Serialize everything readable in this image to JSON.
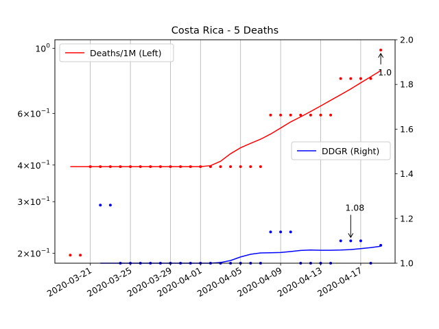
{
  "chart_data": {
    "type": "line",
    "title": "Costa Rica - 5 Deaths",
    "x": [
      "2020-03-19",
      "2020-03-20",
      "2020-03-21",
      "2020-03-22",
      "2020-03-23",
      "2020-03-24",
      "2020-03-25",
      "2020-03-26",
      "2020-03-27",
      "2020-03-28",
      "2020-03-29",
      "2020-03-30",
      "2020-03-31",
      "2020-04-01",
      "2020-04-02",
      "2020-04-03",
      "2020-04-04",
      "2020-04-05",
      "2020-04-06",
      "2020-04-07",
      "2020-04-08",
      "2020-04-09",
      "2020-04-10",
      "2020-04-11",
      "2020-04-12",
      "2020-04-13",
      "2020-04-14",
      "2020-04-15",
      "2020-04-16",
      "2020-04-17",
      "2020-04-18",
      "2020-04-19"
    ],
    "x_ticks": [
      "2020-03-21",
      "2020-03-25",
      "2020-03-29",
      "2020-04-01",
      "2020-04-05",
      "2020-04-09",
      "2020-04-13",
      "2020-04-17"
    ],
    "x_grid": true,
    "left_axis": {
      "scale": "log",
      "ylim": [
        0.185,
        1.07
      ],
      "ticks": [
        {
          "value": 1.0,
          "base": "10",
          "exp": "0"
        },
        {
          "value": 0.6,
          "base": "6×10",
          "exp": "−1"
        },
        {
          "value": 0.4,
          "base": "4×10",
          "exp": "−1"
        },
        {
          "value": 0.3,
          "base": "3×10",
          "exp": "−1"
        },
        {
          "value": 0.2,
          "base": "2×10",
          "exp": "−1"
        }
      ]
    },
    "right_axis": {
      "scale": "linear",
      "ylim": [
        1.0,
        2.0
      ],
      "ticks": [
        "1.0",
        "1.2",
        "1.4",
        "1.6",
        "1.8",
        "2.0"
      ]
    },
    "series": [
      {
        "name": "Deaths/1M (Left)",
        "axis": "left",
        "color": "#ff0000",
        "line_start": 0,
        "line": [
          0.395,
          0.395,
          0.395,
          0.395,
          0.395,
          0.395,
          0.395,
          0.395,
          0.395,
          0.395,
          0.395,
          0.395,
          0.395,
          0.395,
          0.398,
          0.412,
          0.437,
          0.458,
          0.474,
          0.49,
          0.51,
          0.535,
          0.561,
          0.584,
          0.609,
          0.636,
          0.665,
          0.695,
          0.727,
          0.763,
          0.8,
          0.84
        ],
        "points": [
          0.197,
          0.197,
          0.395,
          0.395,
          0.395,
          0.395,
          0.395,
          0.395,
          0.395,
          0.395,
          0.395,
          0.395,
          0.395,
          0.395,
          0.395,
          0.395,
          0.395,
          0.395,
          0.395,
          0.395,
          0.592,
          0.592,
          0.592,
          0.592,
          0.592,
          0.592,
          0.592,
          0.789,
          0.789,
          0.789,
          0.789,
          0.987
        ]
      },
      {
        "name": "DDGR (Right)",
        "axis": "right",
        "color": "#0000ff",
        "line_start": 3,
        "line": [
          1.0,
          1.0,
          1.0,
          1.0,
          1.0,
          1.0,
          1.0,
          1.0,
          1.0,
          1.0,
          1.0,
          1.0,
          1.003,
          1.012,
          1.028,
          1.04,
          1.046,
          1.047,
          1.048,
          1.052,
          1.057,
          1.059,
          1.058,
          1.058,
          1.059,
          1.061,
          1.065,
          1.07,
          1.076
        ],
        "points_start": 3,
        "points": [
          1.26,
          1.26,
          1.0,
          1.0,
          1.0,
          1.0,
          1.0,
          1.0,
          1.0,
          1.0,
          1.0,
          1.0,
          1.0,
          1.0,
          1.0,
          1.0,
          1.0,
          1.14,
          1.14,
          1.14,
          1.0,
          1.0,
          1.0,
          1.0,
          1.1,
          1.1,
          1.1,
          1.0,
          1.08
        ]
      }
    ],
    "legends": [
      {
        "label": "Deaths/1M (Left)",
        "color": "#ff0000",
        "placement": "upper-left"
      },
      {
        "label": "DDGR (Right)",
        "color": "#0000ff",
        "placement": "center-right"
      }
    ],
    "annotations": [
      {
        "text": "1.0",
        "series": 0,
        "index": 31
      },
      {
        "text": "1.08",
        "series": 1,
        "index": 28
      }
    ]
  }
}
